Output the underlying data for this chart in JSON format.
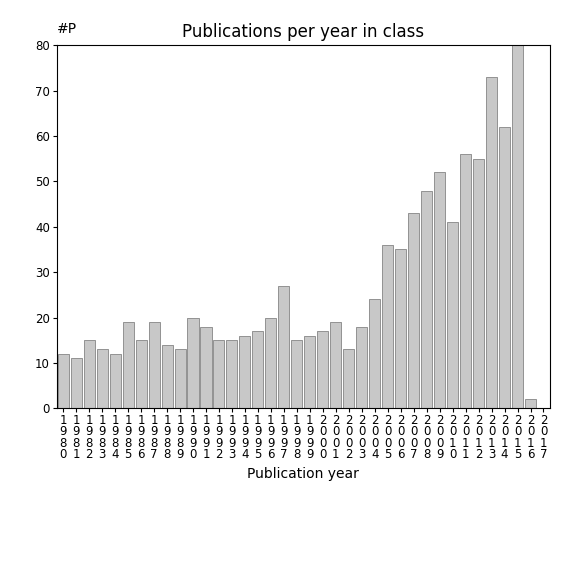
{
  "title": "Publications per year in class",
  "xlabel": "Publication year",
  "ylabel": "#P",
  "bar_color": "#c8c8c8",
  "edge_color": "#555555",
  "years": [
    "1980",
    "1981",
    "1982",
    "1983",
    "1984",
    "1985",
    "1986",
    "1987",
    "1988",
    "1989",
    "1990",
    "1991",
    "1992",
    "1993",
    "1994",
    "1995",
    "1996",
    "1997",
    "1998",
    "1999",
    "2000",
    "2001",
    "2002",
    "2003",
    "2004",
    "2005",
    "2006",
    "2007",
    "2008",
    "2009",
    "2010",
    "2011",
    "2012",
    "2013",
    "2014",
    "2015",
    "2016",
    "2017"
  ],
  "values": [
    12,
    11,
    15,
    13,
    12,
    19,
    15,
    19,
    14,
    13,
    20,
    18,
    15,
    15,
    16,
    17,
    20,
    27,
    15,
    16,
    17,
    19,
    13,
    18,
    24,
    36,
    35,
    43,
    48,
    52,
    41,
    56,
    55,
    73,
    62,
    80,
    2,
    0
  ],
  "ylim": [
    0,
    80
  ],
  "yticks": [
    0,
    10,
    20,
    30,
    40,
    50,
    60,
    70,
    80
  ],
  "background_color": "#ffffff",
  "title_fontsize": 12,
  "label_fontsize": 10,
  "tick_fontsize": 8.5
}
